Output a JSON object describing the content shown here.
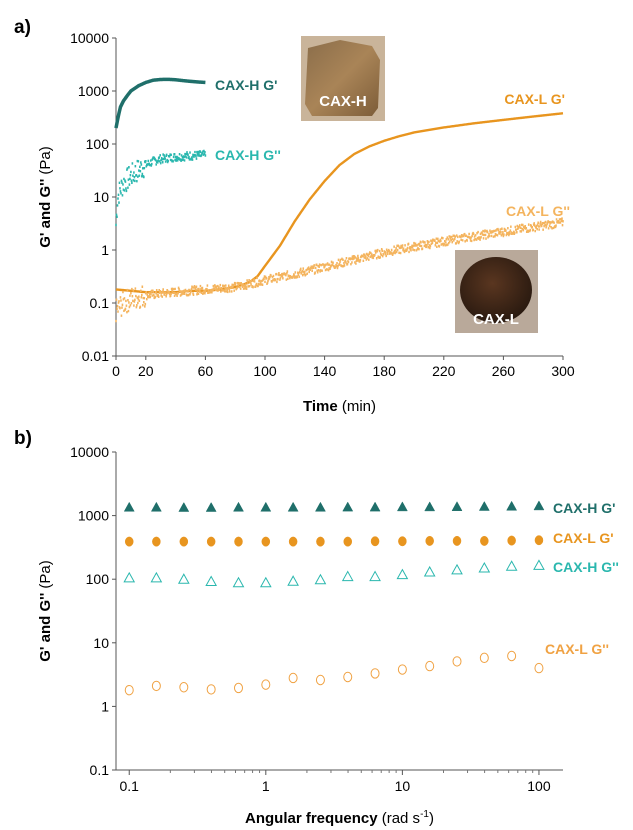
{
  "panels": {
    "a": {
      "label": "a)"
    },
    "b": {
      "label": "b)"
    }
  },
  "photos": {
    "h": {
      "label": "CAX-H"
    },
    "l": {
      "label": "CAX-L"
    }
  },
  "chart_data": [
    {
      "type": "line",
      "panel": "a)",
      "xlabel": {
        "main": "Time",
        "unit": "(min)"
      },
      "ylabel": {
        "main": "G' and G'' ",
        "unit": "(Pa)"
      },
      "yscale": "log",
      "xlim": [
        0,
        300
      ],
      "ylim": [
        0.01,
        10000
      ],
      "x_ticks": [
        0,
        20,
        60,
        100,
        140,
        180,
        220,
        260,
        300
      ],
      "y_ticks": [
        {
          "value": 0.01,
          "label": "0.01"
        },
        {
          "value": 0.1,
          "label": "0.1"
        },
        {
          "value": 1,
          "label": "1"
        },
        {
          "value": 10,
          "label": "10"
        },
        {
          "value": 100,
          "label": "100"
        },
        {
          "value": 1000,
          "label": "1000"
        },
        {
          "value": 10000,
          "label": "10000"
        }
      ],
      "series": [
        {
          "name": "CAX-H G'",
          "color": "#1f6f6a",
          "style": "line",
          "points": [
            [
              0,
              200
            ],
            [
              1,
              280
            ],
            [
              2,
              380
            ],
            [
              3,
              500
            ],
            [
              5,
              650
            ],
            [
              8,
              850
            ],
            [
              10,
              1000
            ],
            [
              15,
              1250
            ],
            [
              20,
              1450
            ],
            [
              25,
              1600
            ],
            [
              30,
              1650
            ],
            [
              35,
              1660
            ],
            [
              40,
              1630
            ],
            [
              45,
              1570
            ],
            [
              50,
              1520
            ],
            [
              55,
              1480
            ],
            [
              60,
              1450
            ]
          ]
        },
        {
          "name": "CAX-H G''",
          "color": "#2ab7ae",
          "style": "noisy",
          "points": [
            [
              0,
              3
            ],
            [
              1,
              9
            ],
            [
              2,
              12
            ],
            [
              3,
              14
            ],
            [
              5,
              18
            ],
            [
              8,
              22
            ],
            [
              10,
              25
            ],
            [
              15,
              32
            ],
            [
              20,
              40
            ],
            [
              25,
              47
            ],
            [
              30,
              52
            ],
            [
              40,
              57
            ],
            [
              50,
              60
            ],
            [
              60,
              62
            ]
          ]
        },
        {
          "name": "CAX-L G'",
          "color": "#e8951f",
          "style": "line",
          "points": [
            [
              0,
              0.18
            ],
            [
              10,
              0.17
            ],
            [
              20,
              0.16
            ],
            [
              30,
              0.16
            ],
            [
              40,
              0.16
            ],
            [
              50,
              0.17
            ],
            [
              60,
              0.17
            ],
            [
              70,
              0.18
            ],
            [
              80,
              0.2
            ],
            [
              85,
              0.22
            ],
            [
              90,
              0.25
            ],
            [
              95,
              0.32
            ],
            [
              100,
              0.5
            ],
            [
              110,
              1.2
            ],
            [
              120,
              3.5
            ],
            [
              130,
              9
            ],
            [
              140,
              20
            ],
            [
              150,
              40
            ],
            [
              160,
              65
            ],
            [
              170,
              90
            ],
            [
              180,
              115
            ],
            [
              190,
              140
            ],
            [
              200,
              165
            ],
            [
              220,
              205
            ],
            [
              240,
              245
            ],
            [
              260,
              285
            ],
            [
              280,
              330
            ],
            [
              300,
              380
            ]
          ]
        },
        {
          "name": "CAX-L G''",
          "color": "#f4b45e",
          "style": "noisy",
          "points": [
            [
              0,
              0.07
            ],
            [
              5,
              0.1
            ],
            [
              10,
              0.12
            ],
            [
              20,
              0.14
            ],
            [
              30,
              0.15
            ],
            [
              40,
              0.16
            ],
            [
              50,
              0.17
            ],
            [
              60,
              0.18
            ],
            [
              70,
              0.19
            ],
            [
              80,
              0.2
            ],
            [
              90,
              0.23
            ],
            [
              100,
              0.27
            ],
            [
              120,
              0.35
            ],
            [
              140,
              0.48
            ],
            [
              160,
              0.65
            ],
            [
              180,
              0.9
            ],
            [
              200,
              1.15
            ],
            [
              220,
              1.45
            ],
            [
              240,
              1.8
            ],
            [
              260,
              2.2
            ],
            [
              280,
              2.7
            ],
            [
              300,
              3.3
            ]
          ]
        }
      ]
    },
    {
      "type": "scatter",
      "panel": "b)",
      "xlabel": {
        "main": "Angular frequency ",
        "unit": "(rad s",
        "sup": "-1",
        "close": ")"
      },
      "ylabel": {
        "main": "G' and G'' ",
        "unit": "(Pa)"
      },
      "xscale": "log",
      "yscale": "log",
      "xlim": [
        0.08,
        150
      ],
      "ylim": [
        0.1,
        10000
      ],
      "x_ticks": [
        {
          "value": 0.1,
          "label": "0.1"
        },
        {
          "value": 1,
          "label": "1"
        },
        {
          "value": 10,
          "label": "10"
        },
        {
          "value": 100,
          "label": "100"
        }
      ],
      "y_ticks": [
        {
          "value": 0.1,
          "label": "0.1"
        },
        {
          "value": 1,
          "label": "1"
        },
        {
          "value": 10,
          "label": "10"
        },
        {
          "value": 100,
          "label": "100"
        },
        {
          "value": 1000,
          "label": "1000"
        },
        {
          "value": 10000,
          "label": "10000"
        }
      ],
      "x": [
        0.1,
        0.158,
        0.251,
        0.398,
        0.631,
        1,
        1.585,
        2.512,
        3.981,
        6.31,
        10,
        15.85,
        25.12,
        39.81,
        63.1,
        100
      ],
      "series": [
        {
          "name": "CAX-H G'",
          "color": "#1f6f6a",
          "marker": "triangle-filled",
          "values": [
            1350,
            1350,
            1340,
            1340,
            1350,
            1350,
            1350,
            1350,
            1360,
            1360,
            1370,
            1370,
            1380,
            1390,
            1400,
            1420
          ]
        },
        {
          "name": "CAX-L G'",
          "color": "#e8951f",
          "marker": "circle-filled",
          "values": [
            390,
            390,
            390,
            390,
            390,
            390,
            390,
            390,
            390,
            395,
            395,
            400,
            400,
            400,
            405,
            410
          ]
        },
        {
          "name": "CAX-H G''",
          "color": "#2ab7ae",
          "marker": "triangle-open",
          "values": [
            105,
            105,
            100,
            92,
            88,
            88,
            93,
            98,
            110,
            110,
            118,
            130,
            140,
            150,
            160,
            165
          ]
        },
        {
          "name": "CAX-L G''",
          "color": "#f0a243",
          "marker": "circle-open",
          "values": [
            1.8,
            2.1,
            2.0,
            1.85,
            1.95,
            2.2,
            2.8,
            2.6,
            2.9,
            3.3,
            3.8,
            4.3,
            5.1,
            5.8,
            6.2,
            4.0
          ]
        }
      ]
    }
  ]
}
